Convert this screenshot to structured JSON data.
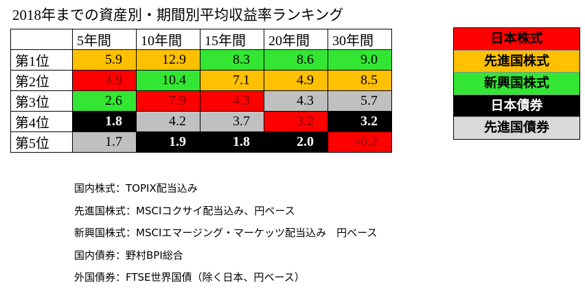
{
  "title": "2018年までの資産別・期間別平均収益率ランキング",
  "table": {
    "header": [
      "5年間",
      "10年間",
      "15年間",
      "20年間",
      "30年間"
    ],
    "rows": [
      {
        "label": "第1位",
        "cells": [
          {
            "value": "5.9",
            "color": "#ffc000"
          },
          {
            "value": "12.9",
            "color": "#ffc000"
          },
          {
            "value": "8.3",
            "color": "#33e633"
          },
          {
            "value": "8.6",
            "color": "#33e633"
          },
          {
            "value": "9.0",
            "color": "#33e633"
          }
        ]
      },
      {
        "label": "第2位",
        "cells": [
          {
            "value": "4.9",
            "color": "#ff0000"
          },
          {
            "value": "10.4",
            "color": "#33e633"
          },
          {
            "value": "7.1",
            "color": "#ffc000"
          },
          {
            "value": "4.9",
            "color": "#ffc000"
          },
          {
            "value": "8.5",
            "color": "#ffc000"
          }
        ]
      },
      {
        "label": "第3位",
        "cells": [
          {
            "value": "2.6",
            "color": "#33e633"
          },
          {
            "value": "7.9",
            "color": "#ff0000"
          },
          {
            "value": "4.3",
            "color": "#ff0000"
          },
          {
            "value": "4.3",
            "color": "#c0c0c0"
          },
          {
            "value": "5.7",
            "color": "#c0c0c0"
          }
        ]
      },
      {
        "label": "第4位",
        "cells": [
          {
            "value": "1.8",
            "color": "#000000"
          },
          {
            "value": "4.2",
            "color": "#c0c0c0"
          },
          {
            "value": "3.7",
            "color": "#c0c0c0"
          },
          {
            "value": "3.2",
            "color": "#ff0000"
          },
          {
            "value": "3.2",
            "color": "#000000"
          }
        ]
      },
      {
        "label": "第5位",
        "cells": [
          {
            "value": "1.7",
            "color": "#c0c0c0"
          },
          {
            "value": "1.9",
            "color": "#000000"
          },
          {
            "value": "1.8",
            "color": "#000000"
          },
          {
            "value": "2.0",
            "color": "#000000"
          },
          {
            "value": "-0.2",
            "color": "#ff0000"
          }
        ]
      }
    ]
  },
  "legend": [
    {
      "label": "日本株式",
      "color": "#ff0000"
    },
    {
      "label": "先進国株式",
      "color": "#ffc000"
    },
    {
      "label": "新興国株式",
      "color": "#33e633"
    },
    {
      "label": "日本債券",
      "color": "#000000"
    },
    {
      "label": "先進国債券",
      "color": "#d9d9d9"
    }
  ],
  "notes": [
    "国内株式：TOPIX配当込み",
    "先進国株式：MSCIコクサイ配当込み、円ベース",
    "新興国株式：MSCIエマージング・マーケッツ配当込み　円ベース",
    "国内債券：野村BPI総合",
    "外国債券：FTSE世界国債（除く日本、円ベース）"
  ]
}
